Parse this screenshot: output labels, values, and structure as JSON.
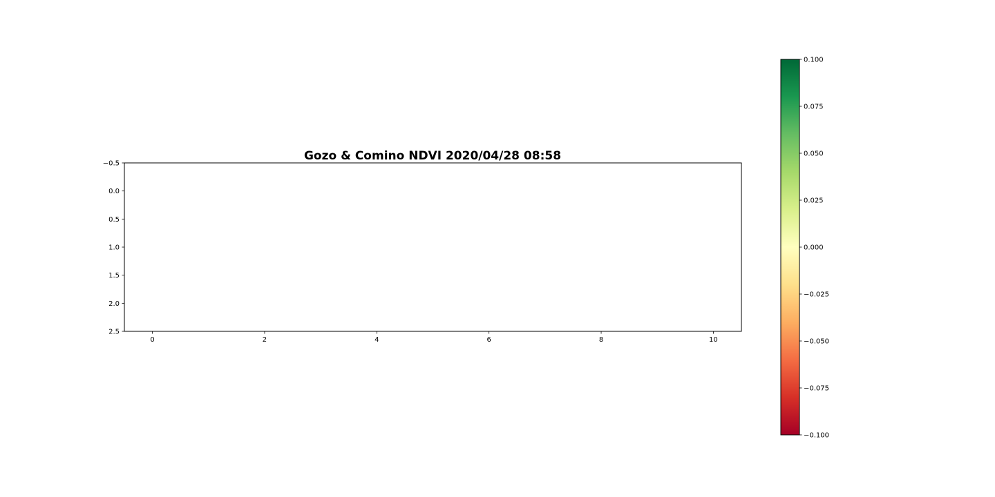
{
  "chart_data": {
    "type": "heatmap",
    "title": "Gozo & Comino NDVI 2020/04/28 08:58",
    "xlabel": "",
    "ylabel": "",
    "xlim": [
      -0.5,
      10.5
    ],
    "ylim": [
      2.5,
      -0.5
    ],
    "y_inverted": true,
    "x_ticks": [
      0,
      2,
      4,
      6,
      8,
      10
    ],
    "x_tick_labels": [
      "0",
      "2",
      "4",
      "6",
      "8",
      "10"
    ],
    "y_ticks": [
      -0.5,
      0.0,
      0.5,
      1.0,
      1.5,
      2.0,
      2.5
    ],
    "y_tick_labels": [
      "−0.5",
      "0.0",
      "0.5",
      "1.0",
      "1.5",
      "2.0",
      "2.5"
    ],
    "grid": false,
    "values": [],
    "colorbar": {
      "colormap": "RdYlGn",
      "range": [
        -0.1,
        0.1
      ],
      "ticks": [
        0.1,
        0.075,
        0.05,
        0.025,
        0.0,
        -0.025,
        -0.05,
        -0.075,
        -0.1
      ],
      "tick_labels": [
        "0.100",
        "0.075",
        "0.050",
        "0.025",
        "0.000",
        "−0.025",
        "−0.050",
        "−0.075",
        "−0.100"
      ],
      "colors": [
        "#a50026",
        "#d73027",
        "#f46d43",
        "#fdae61",
        "#fee08b",
        "#ffffbf",
        "#d9ef8b",
        "#a6d96a",
        "#66bd63",
        "#1a9850",
        "#006837"
      ]
    }
  }
}
